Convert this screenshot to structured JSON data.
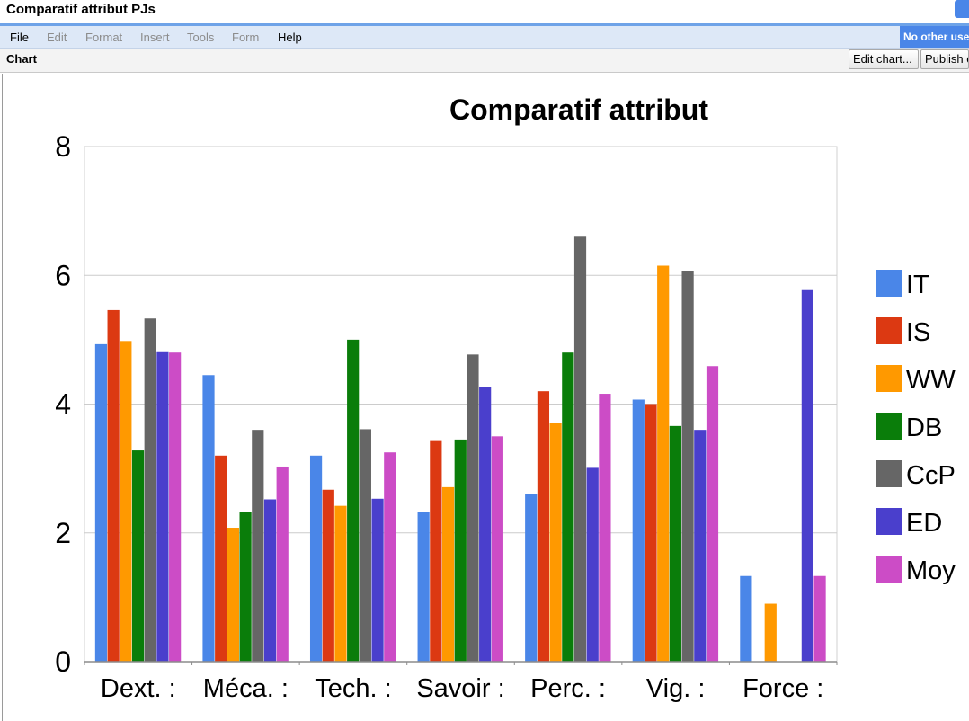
{
  "window": {
    "title": "Comparatif attribut PJs"
  },
  "menu": {
    "items": [
      {
        "label": "File",
        "enabled": true
      },
      {
        "label": "Edit",
        "enabled": false
      },
      {
        "label": "Format",
        "enabled": false
      },
      {
        "label": "Insert",
        "enabled": false
      },
      {
        "label": "Tools",
        "enabled": false
      },
      {
        "label": "Form",
        "enabled": false
      },
      {
        "label": "Help",
        "enabled": true
      }
    ],
    "status": "No other use"
  },
  "toolbar": {
    "sheet_label": "Chart",
    "edit_chart_label": "Edit chart...",
    "publish_label": "Publish c"
  },
  "colors": {
    "accent": "#4a86e8",
    "menubar": "#dde8f7"
  },
  "chart_data": {
    "type": "bar",
    "title": "Comparatif attribut",
    "xlabel": "",
    "ylabel": "",
    "ylim": [
      0,
      8
    ],
    "yticks": [
      0,
      2,
      4,
      6,
      8
    ],
    "grid": true,
    "legend": "right",
    "categories": [
      "Dext. :",
      "Méca. :",
      "Tech. :",
      "Savoir :",
      "Perc. :",
      "Vig. :",
      "Force :"
    ],
    "series": [
      {
        "name": "IT",
        "color": "#4a86e8",
        "values": [
          4.93,
          4.45,
          3.2,
          2.33,
          2.6,
          4.07,
          1.33
        ]
      },
      {
        "name": "IS",
        "color": "#dc3912",
        "values": [
          5.46,
          3.2,
          2.67,
          3.44,
          4.2,
          4.0,
          0
        ]
      },
      {
        "name": "WW",
        "color": "#ff9900",
        "values": [
          4.98,
          2.08,
          2.42,
          2.71,
          3.71,
          6.15,
          0.9
        ]
      },
      {
        "name": "DB",
        "color": "#0a7d0a",
        "values": [
          3.28,
          2.33,
          5.0,
          3.45,
          4.8,
          3.66,
          0
        ]
      },
      {
        "name": "CcP",
        "color": "#666666",
        "values": [
          5.33,
          3.6,
          3.61,
          4.77,
          6.6,
          6.07,
          0
        ]
      },
      {
        "name": "ED",
        "color": "#4a3fcc",
        "values": [
          4.82,
          2.52,
          2.53,
          4.27,
          3.01,
          3.6,
          5.77
        ]
      },
      {
        "name": "Moy",
        "color": "#cc4cc6",
        "values": [
          4.8,
          3.03,
          3.25,
          3.5,
          4.16,
          4.59,
          1.33
        ]
      }
    ]
  }
}
